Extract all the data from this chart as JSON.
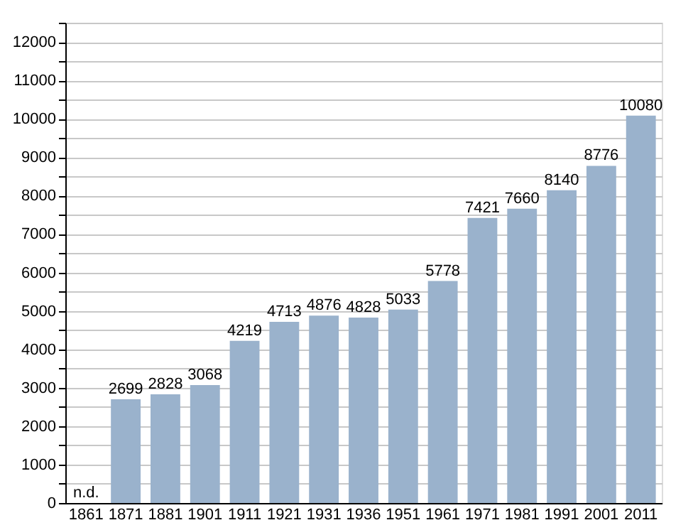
{
  "chart_data": {
    "type": "bar",
    "categories": [
      "1861",
      "1871",
      "1881",
      "1901",
      "1911",
      "1921",
      "1931",
      "1936",
      "1951",
      "1961",
      "1971",
      "1981",
      "1991",
      "2001",
      "2011"
    ],
    "values": [
      null,
      2699,
      2828,
      3068,
      4219,
      4713,
      4876,
      4828,
      5033,
      5778,
      7421,
      7660,
      8140,
      8776,
      10080
    ],
    "value_labels": [
      "n.d.",
      "2699",
      "2828",
      "3068",
      "4219",
      "4713",
      "4876",
      "4828",
      "5033",
      "5778",
      "7421",
      "7660",
      "8140",
      "8776",
      "10080"
    ],
    "color": "#9ab2cc",
    "ylim": [
      0,
      12500
    ],
    "yticks": [
      0,
      {
        "value": 500,
        "label": null
      },
      1000,
      {
        "value": 1500,
        "label": null
      },
      2000,
      {
        "value": 2500,
        "label": null
      },
      3000,
      {
        "value": 3500,
        "label": null
      },
      4000,
      {
        "value": 4500,
        "label": null
      },
      5000,
      {
        "value": 5500,
        "label": null
      },
      6000,
      {
        "value": 6500,
        "label": null
      },
      7000,
      {
        "value": 7500,
        "label": null
      },
      8000,
      {
        "value": 8500,
        "label": null
      },
      9000,
      {
        "value": 9500,
        "label": null
      },
      10000,
      {
        "value": 10500,
        "label": null
      },
      11000,
      {
        "value": 11500,
        "label": null
      },
      12000,
      {
        "value": 12500,
        "label": null
      }
    ],
    "grid": "y"
  }
}
